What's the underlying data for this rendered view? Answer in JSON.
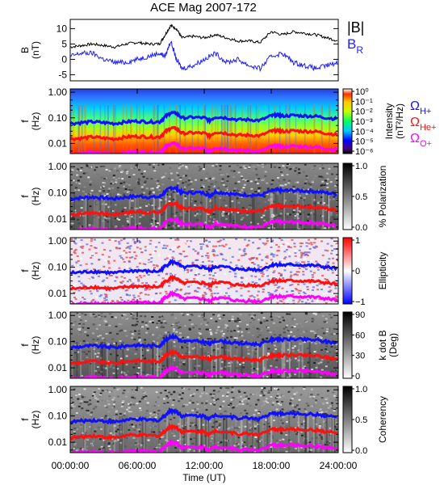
{
  "title": "ACE Mag 2007-172",
  "colors": {
    "B_total": "#000000",
    "B_R": "#1f1fff",
    "H_plus": "#1010ff",
    "He_plus": "#ff1010",
    "O_plus": "#ff00ff"
  },
  "chart_data": [
    {
      "type": "line",
      "title": "ACE Mag 2007-172",
      "ylabel_line1": "B",
      "ylabel_line2": "(nT)",
      "ylim": [
        -7,
        13
      ],
      "yticks": [
        -5,
        0,
        5,
        10
      ],
      "series": [
        {
          "name": "|B|",
          "x_hours": [
            0,
            1,
            2,
            3,
            4,
            5,
            6,
            7,
            8,
            8.5,
            9,
            9.5,
            10,
            11,
            12,
            13,
            14,
            15,
            16,
            17,
            18,
            19,
            20,
            21,
            22,
            23,
            24
          ],
          "values": [
            4,
            4.5,
            5,
            4.5,
            4,
            5,
            5.5,
            5,
            5,
            8,
            11,
            10,
            7,
            7.5,
            7,
            8,
            7,
            6,
            6,
            5.5,
            9,
            8,
            9,
            8.5,
            8,
            7,
            6
          ]
        },
        {
          "name": "B",
          "subscript": "R",
          "x_hours": [
            0,
            1,
            2,
            3,
            4,
            5,
            6,
            7,
            8,
            8.5,
            9,
            9.5,
            10,
            11,
            12,
            13,
            14,
            15,
            16,
            17,
            18,
            19,
            20,
            21,
            22,
            23,
            24
          ],
          "values": [
            1,
            2,
            2,
            0,
            -1,
            -1,
            0,
            1,
            2,
            1,
            6,
            0,
            -3,
            -2,
            0,
            2,
            -1,
            0,
            -2,
            -3,
            1,
            2,
            -1,
            -2,
            -3,
            -2,
            -1
          ]
        }
      ]
    },
    {
      "type": "heatmap",
      "ylabel_line1": "f",
      "ylabel_line2": "(Hz)",
      "yticks": [
        "1.00",
        "0.10",
        "0.01"
      ],
      "colorbar_label": "Intensity",
      "colorbar_unit": "(nT²/Hz)",
      "colorbar_ticks": [
        "10⁰",
        "10⁻¹",
        "10⁻²",
        "10⁻³",
        "10⁻⁴",
        "10⁻⁵",
        "10⁻⁶"
      ],
      "overlay_legend": [
        {
          "symbol": "Ω",
          "subscript": "H+"
        },
        {
          "symbol": "Ω",
          "subscript": "He+"
        },
        {
          "symbol": "Ω",
          "subscript": "O+"
        }
      ]
    },
    {
      "type": "heatmap",
      "ylabel_line1": "f",
      "ylabel_line2": "(Hz)",
      "yticks": [
        "1.00",
        "0.10",
        "0.01"
      ],
      "colorbar_label": "% Polarization",
      "colorbar_ticks": [
        "1.0",
        "0.5",
        "0.0"
      ]
    },
    {
      "type": "heatmap",
      "ylabel_line1": "f",
      "ylabel_line2": "(Hz)",
      "yticks": [
        "1.00",
        "0.10",
        "0.01"
      ],
      "colorbar_label": "Ellipticity",
      "colorbar_ticks": [
        "1",
        "0",
        "−1"
      ]
    },
    {
      "type": "heatmap",
      "ylabel_line1": "f",
      "ylabel_line2": "(Hz)",
      "yticks": [
        "1.00",
        "0.10",
        "0.01"
      ],
      "colorbar_label": "k dot B",
      "colorbar_unit": "(Deg)",
      "colorbar_ticks": [
        "90",
        "60",
        "30",
        "0"
      ]
    },
    {
      "type": "heatmap",
      "ylabel_line1": "f",
      "ylabel_line2": "(Hz)",
      "yticks": [
        "1.00",
        "0.10",
        "0.01"
      ],
      "colorbar_label": "Coherency",
      "colorbar_ticks": [
        "1.0",
        "0.5",
        "0.0"
      ]
    }
  ],
  "gyro_curves": {
    "x_hours": [
      0,
      1,
      2,
      3,
      4,
      5,
      6,
      7,
      8,
      8.5,
      9,
      9.5,
      10,
      11,
      12,
      12.5,
      13,
      14,
      15,
      16,
      17,
      18,
      18.5,
      19,
      20,
      21,
      22,
      23,
      24
    ],
    "H_plus_hz": [
      0.06,
      0.065,
      0.07,
      0.065,
      0.06,
      0.07,
      0.075,
      0.07,
      0.07,
      0.11,
      0.16,
      0.15,
      0.1,
      0.105,
      0.1,
      0.08,
      0.11,
      0.1,
      0.085,
      0.085,
      0.08,
      0.12,
      0.13,
      0.12,
      0.125,
      0.12,
      0.115,
      0.1,
      0.09
    ],
    "He_plus_hz": [
      0.015,
      0.016,
      0.018,
      0.016,
      0.015,
      0.018,
      0.019,
      0.018,
      0.018,
      0.028,
      0.04,
      0.038,
      0.025,
      0.026,
      0.025,
      0.02,
      0.028,
      0.025,
      0.021,
      0.021,
      0.02,
      0.03,
      0.032,
      0.03,
      0.031,
      0.03,
      0.029,
      0.025,
      0.022
    ],
    "O_plus_hz": [
      0.0038,
      0.004,
      0.0044,
      0.004,
      0.0038,
      0.0044,
      0.0047,
      0.0044,
      0.0044,
      0.007,
      0.01,
      0.0095,
      0.0063,
      0.0065,
      0.0063,
      0.005,
      0.007,
      0.0063,
      0.0053,
      0.0053,
      0.005,
      0.0075,
      0.008,
      0.0075,
      0.0078,
      0.0075,
      0.0072,
      0.0063,
      0.0056
    ]
  },
  "xaxis": {
    "label": "Time (UT)",
    "ticks": [
      "00:00:00",
      "06:00:00",
      "12:00:00",
      "18:00:00",
      "24:00:00"
    ]
  }
}
